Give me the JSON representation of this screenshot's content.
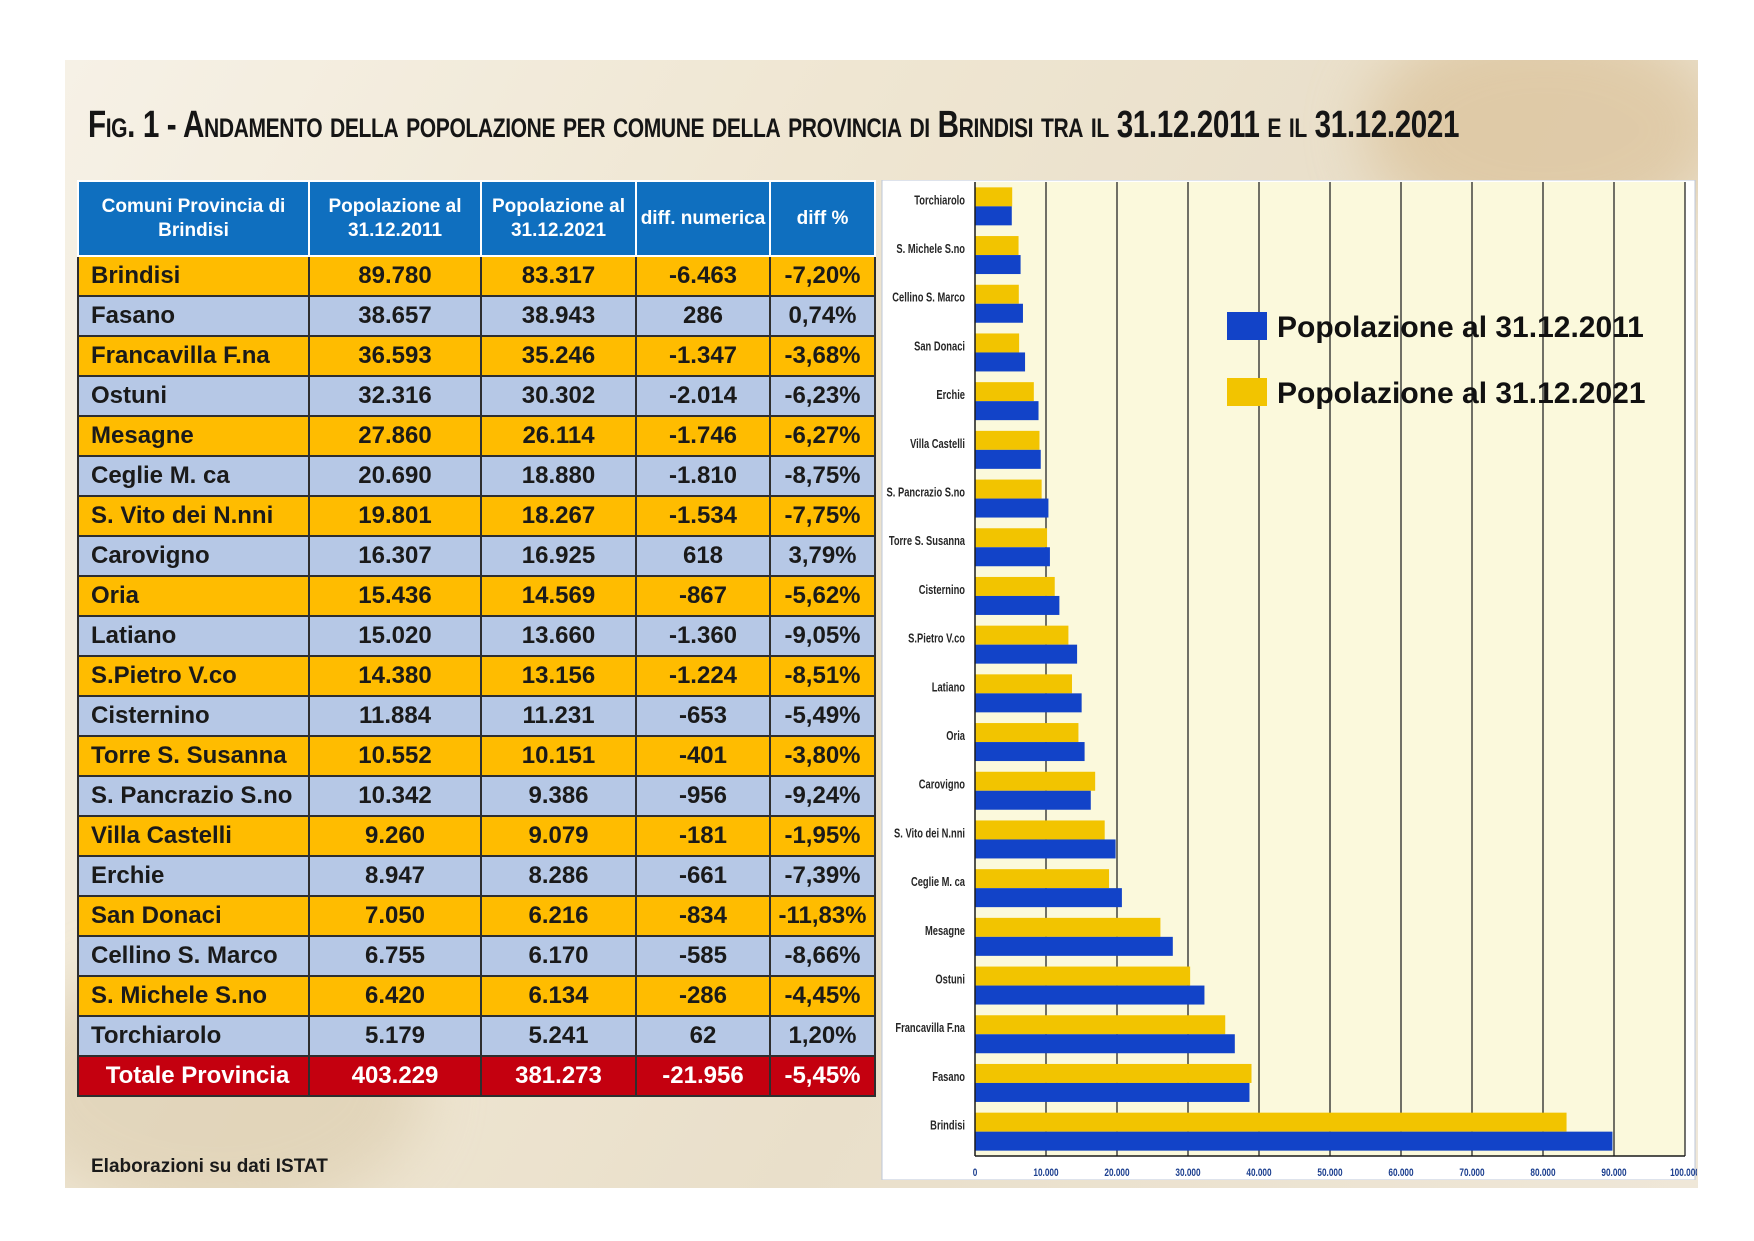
{
  "title": "Fig. 1 - Andamento della popolazione per comune della provincia di Brindisi tra il 31.12.2011 e il 31.12.2021",
  "source_note": "Elaborazioni su dati ISTAT",
  "table": {
    "headers": [
      "Comuni Provincia di Brindisi",
      "Popolazione al 31.12.2011",
      "Popolazione al 31.12.2021",
      "diff. numerica",
      "diff %"
    ],
    "rows": [
      [
        "Brindisi",
        "89.780",
        "83.317",
        "-6.463",
        "-7,20%"
      ],
      [
        "Fasano",
        "38.657",
        "38.943",
        "286",
        "0,74%"
      ],
      [
        "Francavilla F.na",
        "36.593",
        "35.246",
        "-1.347",
        "-3,68%"
      ],
      [
        "Ostuni",
        "32.316",
        "30.302",
        "-2.014",
        "-6,23%"
      ],
      [
        "Mesagne",
        "27.860",
        "26.114",
        "-1.746",
        "-6,27%"
      ],
      [
        "Ceglie M. ca",
        "20.690",
        "18.880",
        "-1.810",
        "-8,75%"
      ],
      [
        "S. Vito dei N.nni",
        "19.801",
        "18.267",
        "-1.534",
        "-7,75%"
      ],
      [
        "Carovigno",
        "16.307",
        "16.925",
        "618",
        "3,79%"
      ],
      [
        "Oria",
        "15.436",
        "14.569",
        "-867",
        "-5,62%"
      ],
      [
        "Latiano",
        "15.020",
        "13.660",
        "-1.360",
        "-9,05%"
      ],
      [
        "S.Pietro V.co",
        "14.380",
        "13.156",
        "-1.224",
        "-8,51%"
      ],
      [
        "Cisternino",
        "11.884",
        "11.231",
        "-653",
        "-5,49%"
      ],
      [
        "Torre S. Susanna",
        "10.552",
        "10.151",
        "-401",
        "-3,80%"
      ],
      [
        "S. Pancrazio S.no",
        "10.342",
        "9.386",
        "-956",
        "-9,24%"
      ],
      [
        "Villa Castelli",
        "9.260",
        "9.079",
        "-181",
        "-1,95%"
      ],
      [
        "Erchie",
        "8.947",
        "8.286",
        "-661",
        "-7,39%"
      ],
      [
        "San Donaci",
        "7.050",
        "6.216",
        "-834",
        "-11,83%"
      ],
      [
        "Cellino S. Marco",
        "6.755",
        "6.170",
        "-585",
        "-8,66%"
      ],
      [
        "S. Michele S.no",
        "6.420",
        "6.134",
        "-286",
        "-4,45%"
      ],
      [
        "Torchiarolo",
        "5.179",
        "5.241",
        "62",
        "1,20%"
      ]
    ],
    "total": [
      "Totale Provincia",
      "403.229",
      "381.273",
      "-21.956",
      "-5,45%"
    ]
  },
  "chart_data": {
    "type": "bar",
    "orientation": "horizontal",
    "categories": [
      "Torchiarolo",
      "S. Michele S.no",
      "Cellino S. Marco",
      "San Donaci",
      "Erchie",
      "Villa Castelli",
      "S. Pancrazio S.no",
      "Torre S. Susanna",
      "Cisternino",
      "S.Pietro V.co",
      "Latiano",
      "Oria",
      "Carovigno",
      "S. Vito dei N.nni",
      "Ceglie M. ca",
      "Mesagne",
      "Ostuni",
      "Francavilla F.na",
      "Fasano",
      "Brindisi"
    ],
    "series": [
      {
        "name": "Popolazione al 31.12.2011",
        "color": "#1243c8",
        "values": [
          5179,
          6420,
          6755,
          7050,
          8947,
          9260,
          10342,
          10552,
          11884,
          14380,
          15020,
          15436,
          16307,
          19801,
          20690,
          27860,
          32316,
          36593,
          38657,
          89780
        ]
      },
      {
        "name": "Popolazione al 31.12.2021",
        "color": "#f2c400",
        "values": [
          5241,
          6134,
          6170,
          6216,
          8286,
          9079,
          9386,
          10151,
          11231,
          13156,
          13660,
          14569,
          16925,
          18267,
          18880,
          26114,
          30302,
          35246,
          38943,
          83317
        ]
      }
    ],
    "xlim": [
      0,
      100000
    ],
    "xticks": [
      0,
      10000,
      20000,
      30000,
      40000,
      50000,
      60000,
      70000,
      80000,
      90000,
      100000
    ],
    "xtick_labels": [
      "0",
      "10.000",
      "20.000",
      "30.000",
      "40.000",
      "50.000",
      "60.000",
      "70.000",
      "80.000",
      "90.000",
      "100.000"
    ],
    "grid": true,
    "legend_position": "top-right",
    "title": "",
    "xlabel": "",
    "ylabel": ""
  },
  "colors": {
    "header_blue": "#0f6fbf",
    "row_orange": "#ffbc00",
    "row_blue": "#b6c8e6",
    "total_red": "#c4000f",
    "plot_bg": "#fbf9dc"
  }
}
